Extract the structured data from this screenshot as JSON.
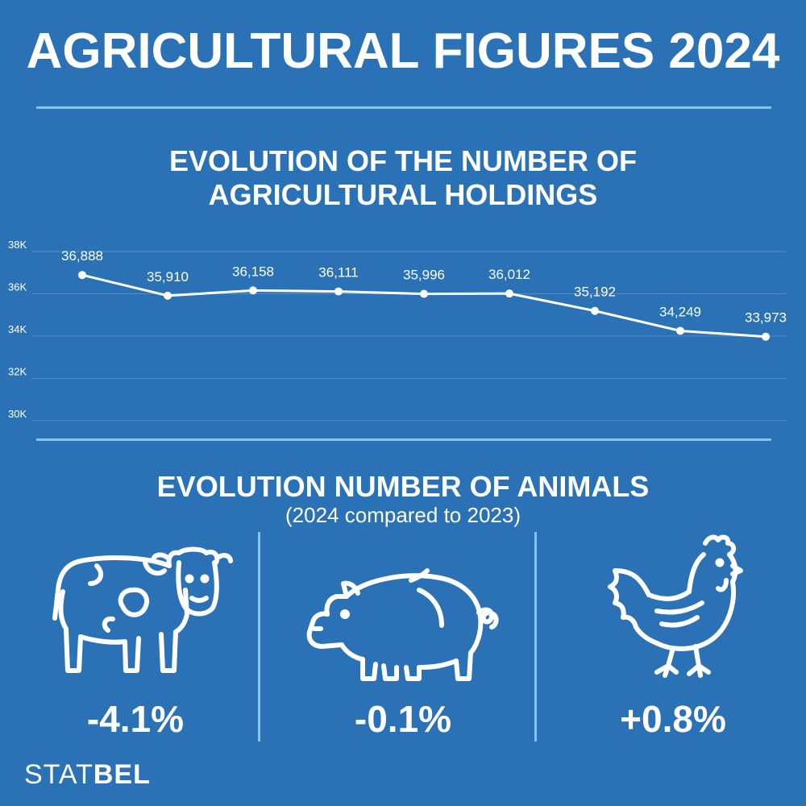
{
  "header": {
    "title": "AGRICULTURAL FIGURES 2024"
  },
  "holdings_section": {
    "title_line1": "EVOLUTION OF THE NUMBER OF",
    "title_line2": "AGRICULTURAL HOLDINGS"
  },
  "animals_section": {
    "title": "EVOLUTION NUMBER OF ANIMALS",
    "subtitle": "(2024 compared to 2023)",
    "items": [
      {
        "icon": "cow-icon",
        "change": "-4.1%"
      },
      {
        "icon": "pig-icon",
        "change": "-0.1%"
      },
      {
        "icon": "chicken-icon",
        "change": "+0.8%"
      }
    ]
  },
  "logo": {
    "part1": "STAT",
    "part2": "BEL"
  },
  "colors": {
    "background": "#2a72b5",
    "accent_line": "#7fc7f0",
    "text": "#ffffff"
  },
  "chart_data": {
    "type": "line",
    "title": "EVOLUTION OF THE NUMBER OF AGRICULTURAL HOLDINGS",
    "values": [
      36888,
      35910,
      36158,
      36111,
      35996,
      36012,
      35192,
      34249,
      33973
    ],
    "data_labels": [
      "36,888",
      "35,910",
      "36,158",
      "36,111",
      "35,996",
      "36,012",
      "35,192",
      "34,249",
      "33,973"
    ],
    "y_ticks": [
      30000,
      32000,
      34000,
      36000,
      38000
    ],
    "y_tick_labels": [
      "30K",
      "32K",
      "34K",
      "36K",
      "38K"
    ],
    "ylim": [
      30000,
      38000
    ],
    "grid": true
  }
}
